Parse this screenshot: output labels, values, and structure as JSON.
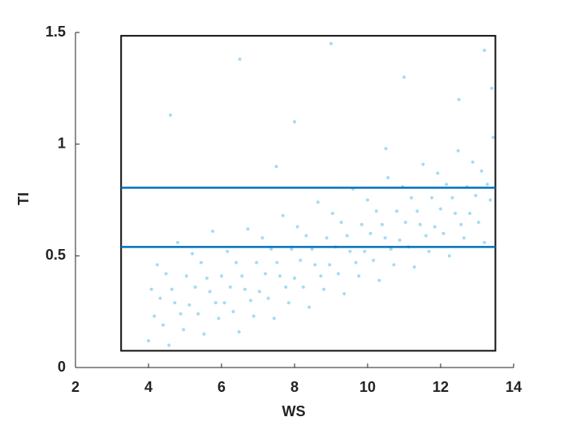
{
  "chart_data": {
    "type": "scatter",
    "x_label": "WS",
    "y_label": "TI",
    "x": [
      4.0,
      4.08,
      4.16,
      4.24,
      4.32,
      4.4,
      4.48,
      4.56,
      4.64,
      4.72,
      4.8,
      4.88,
      4.96,
      5.04,
      5.12,
      5.2,
      5.28,
      5.36,
      5.44,
      5.52,
      5.6,
      5.68,
      5.76,
      5.84,
      5.92,
      6.0,
      6.08,
      6.16,
      6.24,
      6.32,
      6.4,
      6.48,
      6.56,
      6.64,
      6.72,
      6.8,
      6.88,
      6.96,
      7.04,
      7.12,
      7.2,
      7.28,
      7.36,
      7.44,
      7.52,
      7.6,
      7.68,
      7.76,
      7.84,
      7.92,
      8.0,
      8.08,
      8.16,
      8.24,
      8.32,
      8.4,
      8.48,
      8.56,
      8.64,
      8.72,
      8.8,
      8.88,
      8.96,
      9.04,
      9.12,
      9.2,
      9.28,
      9.36,
      9.44,
      9.52,
      9.6,
      9.68,
      9.76,
      9.84,
      9.92,
      10.0,
      10.08,
      10.16,
      10.24,
      10.32,
      10.4,
      10.48,
      10.56,
      10.64,
      10.72,
      10.8,
      10.88,
      10.96,
      11.04,
      11.12,
      11.2,
      11.28,
      11.36,
      11.44,
      11.52,
      11.6,
      11.68,
      11.76,
      11.84,
      11.92,
      12.0,
      12.08,
      12.16,
      12.24,
      12.32,
      12.4,
      12.48,
      12.56,
      12.64,
      12.72,
      12.8,
      12.88,
      12.96,
      13.04,
      13.12,
      13.2,
      13.28,
      13.36,
      13.44,
      6.5,
      9.0,
      11.0,
      13.2,
      8.0,
      4.6,
      12.5,
      10.5,
      7.5,
      13.4
    ],
    "values": [
      0.12,
      0.35,
      0.23,
      0.46,
      0.31,
      0.19,
      0.42,
      0.1,
      0.35,
      0.29,
      0.56,
      0.24,
      0.17,
      0.41,
      0.28,
      0.51,
      0.36,
      0.24,
      0.47,
      0.15,
      0.4,
      0.34,
      0.61,
      0.29,
      0.22,
      0.41,
      0.29,
      0.52,
      0.36,
      0.25,
      0.47,
      0.16,
      0.41,
      0.35,
      0.62,
      0.3,
      0.23,
      0.47,
      0.34,
      0.58,
      0.42,
      0.31,
      0.53,
      0.22,
      0.47,
      0.41,
      0.68,
      0.36,
      0.29,
      0.53,
      0.4,
      0.63,
      0.48,
      0.36,
      0.59,
      0.27,
      0.53,
      0.46,
      0.74,
      0.41,
      0.35,
      0.58,
      0.46,
      0.69,
      0.54,
      0.42,
      0.65,
      0.33,
      0.59,
      0.52,
      0.8,
      0.47,
      0.41,
      0.64,
      0.52,
      0.75,
      0.6,
      0.48,
      0.7,
      0.39,
      0.64,
      0.58,
      0.85,
      0.53,
      0.46,
      0.7,
      0.57,
      0.81,
      0.65,
      0.54,
      0.76,
      0.45,
      0.7,
      0.64,
      0.91,
      0.59,
      0.52,
      0.76,
      0.63,
      0.87,
      0.71,
      0.6,
      0.82,
      0.5,
      0.76,
      0.69,
      0.97,
      0.64,
      0.58,
      0.81,
      0.69,
      0.92,
      0.77,
      0.65,
      0.88,
      0.56,
      0.82,
      0.75,
      1.03,
      1.38,
      1.45,
      1.3,
      1.42,
      1.1,
      1.13,
      1.2,
      0.98,
      0.9,
      1.25
    ],
    "color": "#4db8ea",
    "xlim": [
      2,
      14
    ],
    "xticks": [
      2,
      4,
      6,
      8,
      10,
      12,
      14
    ],
    "ylim": [
      0,
      1.5
    ],
    "yticks": [
      0,
      0.5,
      1,
      1.5
    ],
    "box": {
      "xlim": [
        3.25,
        13.5
      ],
      "ylim": [
        0.075,
        1.485
      ]
    },
    "hlines": [
      {
        "value": 0.805,
        "color": "#0072bd"
      },
      {
        "value": 0.54,
        "color": "#0072bd"
      }
    ]
  }
}
